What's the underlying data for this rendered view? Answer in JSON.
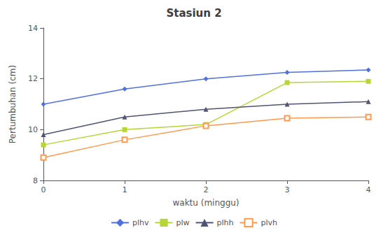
{
  "chart_data": {
    "type": "line",
    "title": "Stasiun 2",
    "xlabel": "waktu (minggu)",
    "ylabel": "Pertumbuhan (cm)",
    "x": [
      0,
      1,
      2,
      3,
      4
    ],
    "series": [
      {
        "name": "plhv",
        "values": [
          11.0,
          11.6,
          12.0,
          12.25,
          12.35
        ],
        "marker": "diamond"
      },
      {
        "name": "plw",
        "values": [
          9.4,
          10.0,
          10.2,
          11.85,
          11.9
        ],
        "marker": "square"
      },
      {
        "name": "plhh",
        "values": [
          9.8,
          10.5,
          10.8,
          11.0,
          11.1
        ],
        "marker": "triangle"
      },
      {
        "name": "plvh",
        "values": [
          8.9,
          9.6,
          10.15,
          10.45,
          10.5
        ],
        "marker": "hollow_square"
      }
    ],
    "xlim": [
      0,
      4
    ],
    "xticks": [
      0,
      1,
      2,
      3,
      4
    ],
    "ylim": [
      8,
      14
    ],
    "yticks": [
      8,
      10,
      12,
      14
    ],
    "grid": false,
    "legend": "bottom"
  }
}
